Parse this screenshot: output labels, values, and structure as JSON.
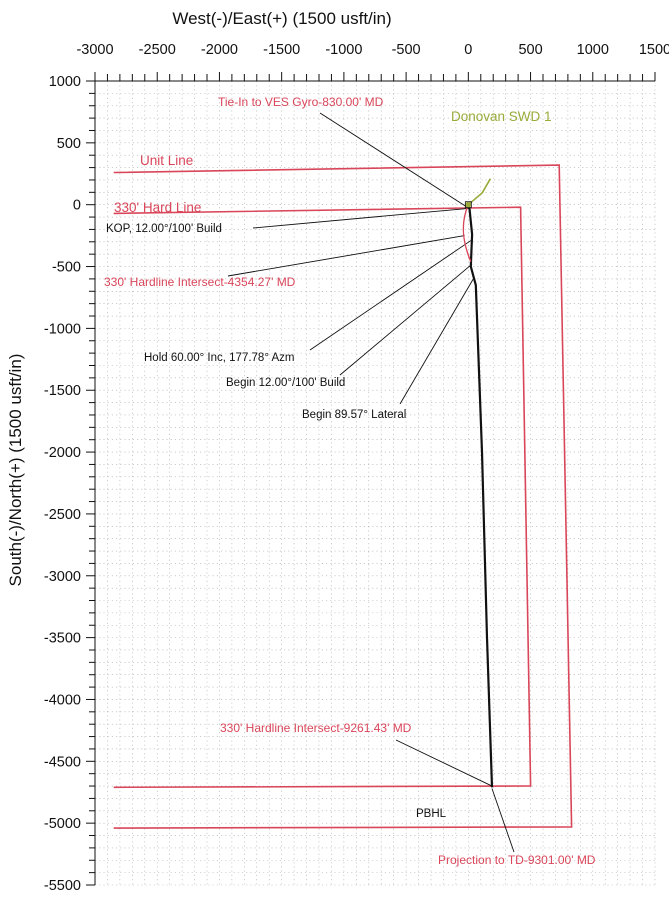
{
  "chart_data": {
    "type": "line",
    "xlabel": "West(-)/East(+) (1500 usft/in)",
    "ylabel": "South(-)/North(+) (1500 usft/in)",
    "xlim": [
      -3000,
      1500
    ],
    "ylim": [
      -5500,
      1000
    ],
    "x_ticks": [
      -3000,
      -2500,
      -2000,
      -1500,
      -1000,
      -500,
      0,
      500,
      1000,
      1500
    ],
    "y_ticks": [
      1000,
      500,
      0,
      -500,
      -1000,
      -1500,
      -2000,
      -2500,
      -3000,
      -3500,
      -4000,
      -4500,
      -5000,
      -5500
    ],
    "grid": true,
    "colors": {
      "boundary": "#d9465a",
      "wellpath": "#111111",
      "well_label": "#9aab3a",
      "grid": "#9a9a9a"
    },
    "series": [
      {
        "name": "Unit Line",
        "points": [
          [
            -2850,
            260
          ],
          [
            730,
            320
          ],
          [
            830,
            -5030
          ],
          [
            -2850,
            -5040
          ]
        ]
      },
      {
        "name": "330' Hard Line",
        "points": [
          [
            -2850,
            -70
          ],
          [
            420,
            -20
          ],
          [
            500,
            -4700
          ],
          [
            -2850,
            -4710
          ]
        ]
      },
      {
        "points": [
          [
            0,
            0
          ],
          [
            10,
            -40
          ],
          [
            30,
            -240
          ],
          [
            20,
            -500
          ],
          [
            60,
            -650
          ],
          [
            110,
            -2000
          ],
          [
            150,
            -3500
          ],
          [
            190,
            -4710
          ]
        ]
      }
    ],
    "well": {
      "name": "Donovan SWD 1",
      "x": 0,
      "y": 0
    },
    "annotations": [
      {
        "text": "Tie-In to VES Gyro-830.00' MD",
        "color": "red",
        "target": [
          -10,
          -20
        ]
      },
      {
        "text": "Donovan SWD 1",
        "color": "green",
        "target": [
          0,
          0
        ]
      },
      {
        "text": "Unit Line",
        "color": "red"
      },
      {
        "text": "330' Hard Line",
        "color": "red"
      },
      {
        "text": "KOP, 12.00°/100' Build",
        "color": "black",
        "target": [
          0,
          -30
        ]
      },
      {
        "text": "330' Hardline Intersect-4354.27' MD",
        "color": "red",
        "target": [
          -30,
          -250
        ]
      },
      {
        "text": "Hold 60.00° Inc, 177.78° Azm",
        "color": "black",
        "target": [
          20,
          -290
        ]
      },
      {
        "text": "Begin 12.00°/100' Build",
        "color": "black",
        "target": [
          30,
          -480
        ]
      },
      {
        "text": "Begin 89.57° Lateral",
        "color": "black",
        "target": [
          40,
          -600
        ]
      },
      {
        "text": "330' Hardline Intersect-9261.43' MD",
        "color": "red",
        "target": [
          190,
          -4700
        ]
      },
      {
        "text": "PBHL",
        "color": "black",
        "target": [
          190,
          -4710
        ]
      },
      {
        "text": "Projection to TD-9301.00' MD",
        "color": "red",
        "target": [
          190,
          -4720
        ]
      }
    ]
  }
}
